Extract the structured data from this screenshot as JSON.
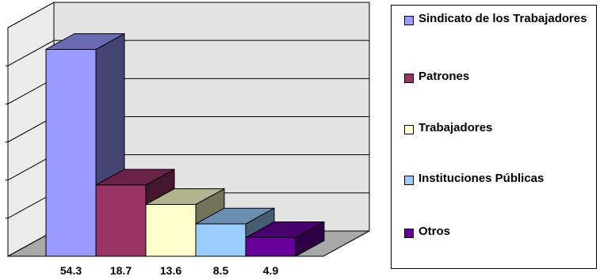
{
  "chart_data": {
    "type": "bar",
    "three_d": true,
    "categories": [
      "Sindicato de los Trabajadores",
      "Patrones",
      "Trabajadores",
      "Instituciones Públicas",
      "Otros"
    ],
    "values": [
      54.3,
      18.7,
      13.6,
      8.5,
      4.9
    ],
    "data_labels": [
      "54.3",
      "18.7",
      "13.6",
      "8.5",
      "4.9"
    ],
    "colors": [
      "#9999ff",
      "#993366",
      "#ffffcc",
      "#99ccff",
      "#660099"
    ],
    "ylim": [
      0,
      60
    ],
    "gridlines": true,
    "legend_position": "right",
    "title": "",
    "xlabel": "",
    "ylabel": ""
  }
}
